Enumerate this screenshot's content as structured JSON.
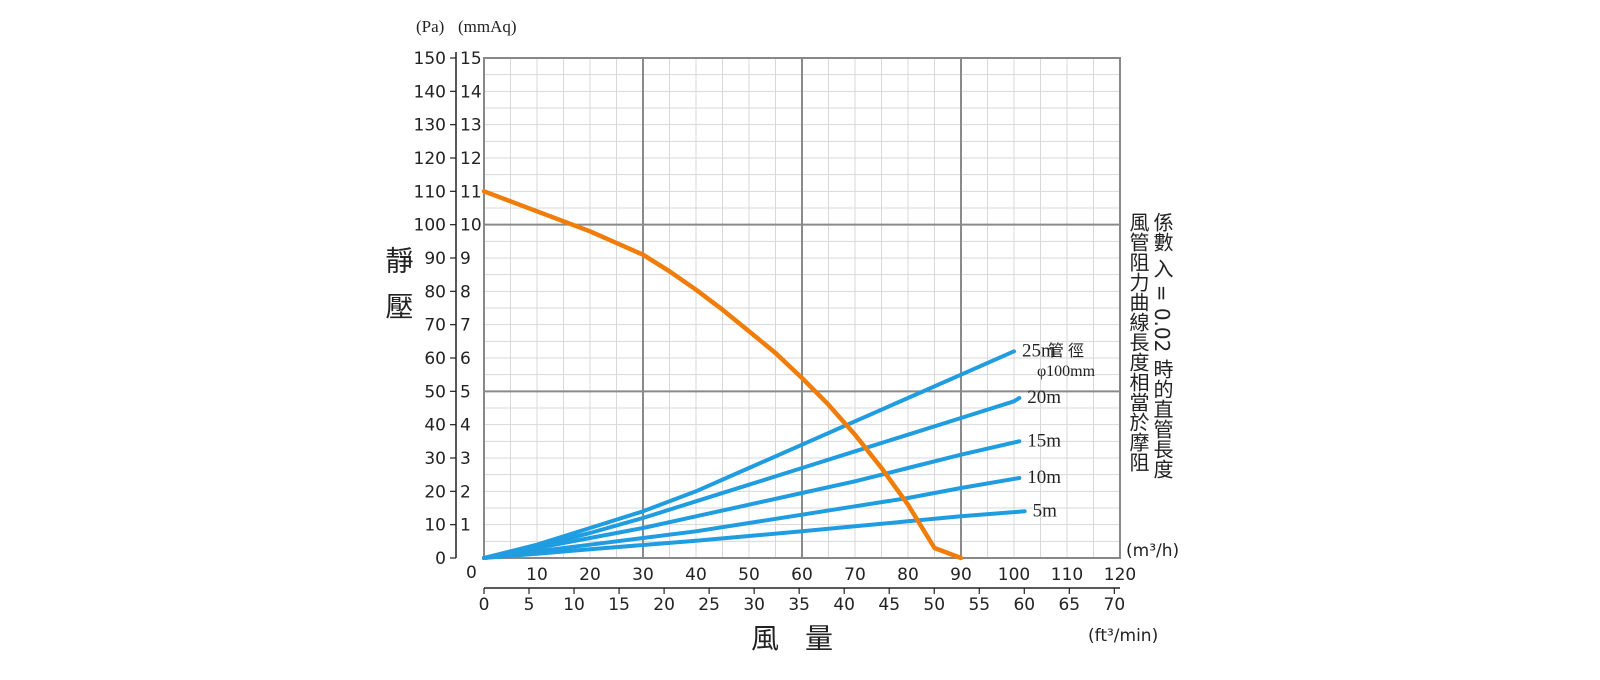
{
  "chart_data": {
    "type": "line",
    "y_axis_label": "靜壓",
    "y_unit_pa": "(Pa)",
    "y_unit_mmaq": "(mmAq)",
    "y_ticks_pa": [
      "0",
      "10",
      "20",
      "30",
      "40",
      "50",
      "60",
      "70",
      "80",
      "90",
      "100",
      "110",
      "120",
      "130",
      "140",
      "150"
    ],
    "y_ticks_mmaq": [
      "1",
      "2",
      "3",
      "4",
      "5",
      "6",
      "7",
      "8",
      "9",
      "10",
      "11",
      "12",
      "13",
      "14",
      "15"
    ],
    "y_zero_mmaq": "0",
    "x_axis_label": "風量",
    "x_unit_m3h": "(m³/h)",
    "x_unit_ftmin": "(ft³/min)",
    "x_ticks_m3h": [
      "10",
      "20",
      "30",
      "40",
      "50",
      "60",
      "70",
      "80",
      "90",
      "100",
      "110",
      "120"
    ],
    "x_zero_m3h": "0",
    "x_ticks_ftmin": [
      "0",
      "5",
      "10",
      "15",
      "20",
      "25",
      "30",
      "35",
      "40",
      "45",
      "50",
      "55",
      "60",
      "65",
      "70"
    ],
    "xlim_m3h": [
      0,
      120
    ],
    "ylim_pa": [
      0,
      150
    ],
    "grid": true,
    "fan_curve": {
      "color": "#f07d0a",
      "x": [
        0,
        5,
        10,
        15,
        20,
        25,
        30,
        35,
        40,
        45,
        50,
        55,
        60,
        65,
        70,
        75,
        80,
        85,
        90,
        95
      ],
      "y": [
        110,
        107,
        104,
        101,
        98,
        94.5,
        91,
        86,
        80.5,
        74.5,
        68,
        61.5,
        54,
        46,
        37,
        27,
        16,
        3,
        0,
        0
      ]
    },
    "resistance_curves": [
      {
        "label": "25m",
        "color": "#1f9de0",
        "x": [
          0,
          10,
          20,
          30,
          40,
          50,
          60,
          70,
          80,
          90,
          100
        ],
        "y": [
          0,
          4,
          9,
          14,
          20,
          27,
          34,
          41,
          48,
          55,
          62
        ]
      },
      {
        "label": "20m",
        "color": "#1f9de0",
        "x": [
          0,
          10,
          20,
          30,
          40,
          50,
          60,
          70,
          80,
          90,
          100,
          101
        ],
        "y": [
          0,
          3.5,
          7.5,
          12,
          17,
          22,
          27,
          32,
          37,
          42,
          47,
          48
        ]
      },
      {
        "label": "15m",
        "color": "#1f9de0",
        "x": [
          0,
          10,
          20,
          30,
          40,
          50,
          60,
          70,
          80,
          90,
          101
        ],
        "y": [
          0,
          3,
          6,
          9,
          12.5,
          16,
          19.5,
          23,
          27,
          31,
          35
        ]
      },
      {
        "label": "10m",
        "color": "#1f9de0",
        "x": [
          0,
          10,
          20,
          30,
          40,
          50,
          60,
          70,
          80,
          90,
          101
        ],
        "y": [
          0,
          2,
          4,
          6,
          8,
          10.5,
          13,
          15.5,
          18,
          21,
          24
        ]
      },
      {
        "label": "5m",
        "color": "#1f9de0",
        "x": [
          0,
          10,
          20,
          30,
          40,
          50,
          60,
          70,
          80,
          90,
          102
        ],
        "y": [
          0,
          1.3,
          2.6,
          3.9,
          5.2,
          6.6,
          8,
          9.5,
          11,
          12.5,
          14
        ]
      }
    ],
    "pipe_label": "管 徑",
    "pipe_diameter": "φ100mm",
    "note_line1": "風管阻力曲線長度相當於摩阻",
    "note_line2": "係數 入 = 0.02 時的直管長度"
  }
}
